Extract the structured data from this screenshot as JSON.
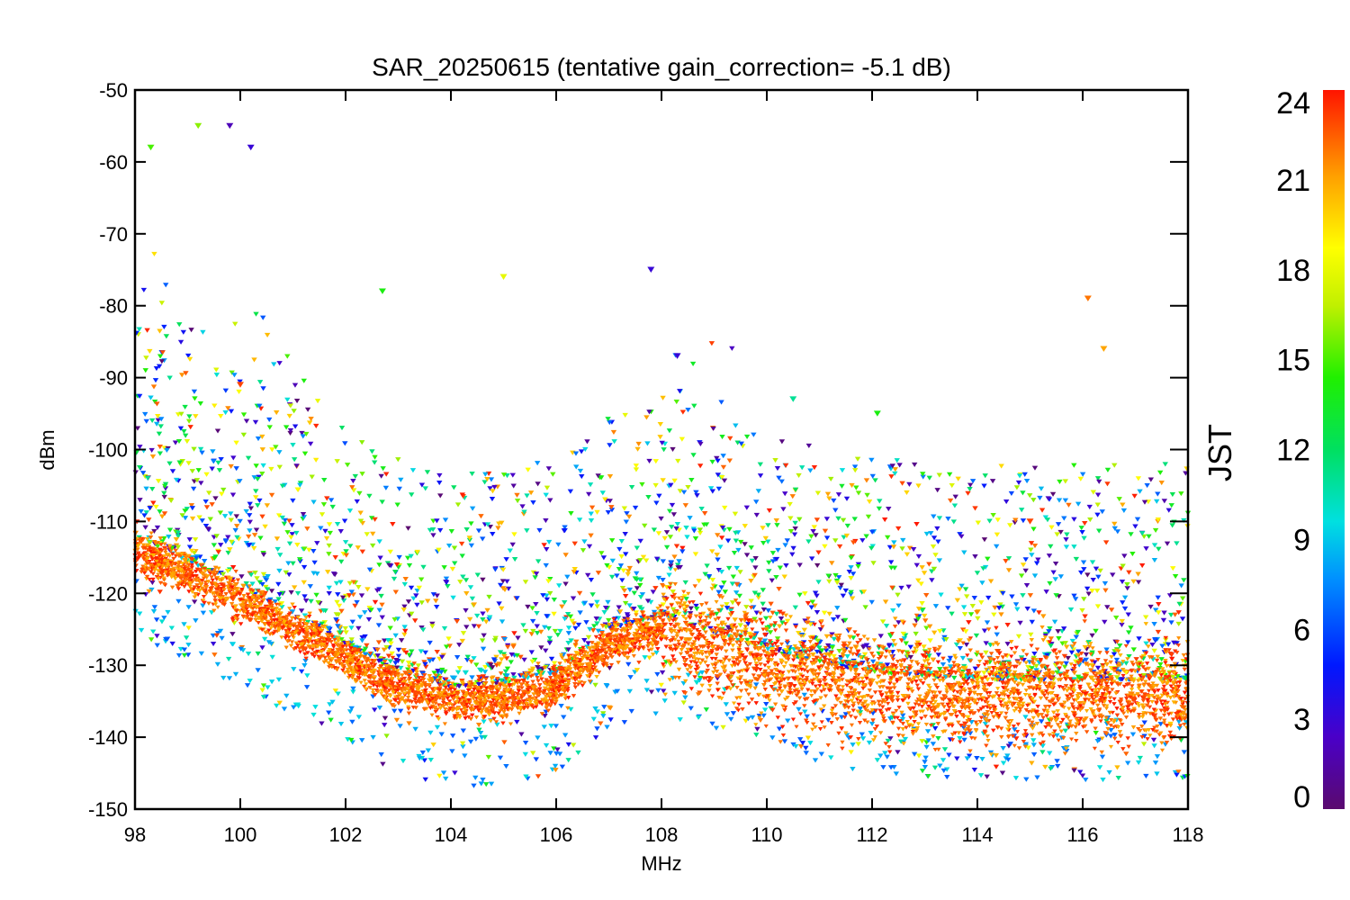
{
  "chart_data": {
    "type": "scatter",
    "title": "SAR_20250615 (tentative gain_correction= -5.1 dB)",
    "xlabel": "MHz",
    "ylabel": "dBm",
    "xlim": [
      98,
      118
    ],
    "ylim": [
      -150,
      -50
    ],
    "xticks": [
      98,
      100,
      102,
      104,
      106,
      108,
      110,
      112,
      114,
      116,
      118
    ],
    "yticks": [
      -50,
      -60,
      -70,
      -80,
      -90,
      -100,
      -110,
      -120,
      -130,
      -140,
      -150
    ],
    "colorbar": {
      "label": "JST",
      "range": [
        0,
        24
      ],
      "ticks": [
        0,
        3,
        6,
        9,
        12,
        15,
        18,
        21,
        24
      ],
      "colormap": "rainbow (purple → blue → cyan → green → yellow → orange → red)"
    },
    "grid": false,
    "marker": "small triangles (▼)",
    "series": [
      {
        "description": "noise floor envelope (dense band)",
        "x": [
          98,
          100,
          102,
          103,
          104,
          105,
          106,
          107,
          108,
          110,
          112,
          114,
          116,
          118
        ],
        "y": [
          -114,
          -121,
          -129,
          -133,
          -135,
          -134.5,
          -133,
          -127,
          -125,
          -130,
          -133,
          -134,
          -134,
          -134
        ]
      },
      {
        "description": "strong scattered peaks",
        "x": [
          98.3,
          99.2,
          99.8,
          100.0,
          100.2,
          102.7,
          105.0,
          107.8,
          108.3,
          110.5,
          112.1,
          115.0,
          116.1,
          116.4
        ],
        "y": [
          -58,
          -55,
          -55,
          -91,
          -58,
          -78,
          -76,
          -75,
          -87,
          -93,
          -95,
          -110,
          -79,
          -86
        ],
        "jst": [
          15,
          16,
          2,
          23,
          3,
          14,
          18,
          3,
          3,
          11,
          14,
          23,
          22,
          21
        ]
      }
    ]
  }
}
